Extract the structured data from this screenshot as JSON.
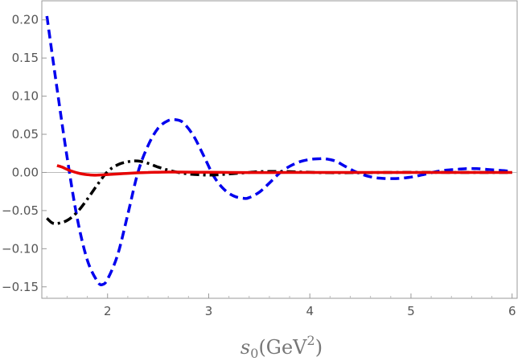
{
  "chart_data": {
    "type": "line",
    "title": "",
    "xlabel": {
      "base": "s",
      "sub": "0",
      "paren_open": "(GeV",
      "sup": "2",
      "paren_close": ")"
    },
    "ylabel": "",
    "xlim": [
      1.35,
      6.05
    ],
    "ylim": [
      -0.165,
      0.225
    ],
    "grid": false,
    "legend": "none",
    "xticks": [
      2,
      3,
      4,
      5,
      6
    ],
    "xtick_labels": [
      "2",
      "3",
      "4",
      "5",
      "6"
    ],
    "yticks": [
      0.2,
      0.15,
      0.1,
      0.05,
      0.0,
      -0.05,
      -0.1,
      -0.15
    ],
    "ytick_labels": [
      "0.20",
      "0.15",
      "0.10",
      "0.05",
      "0.00",
      "−0.05",
      "−0.10",
      "−0.15"
    ],
    "zero_line_color": "#bbbbbb",
    "series": [
      {
        "color": "#0000ee",
        "dash": "dashed",
        "x": [
          1.4,
          1.5,
          1.6,
          1.7,
          1.8,
          1.9,
          1.95,
          2.0,
          2.1,
          2.2,
          2.3,
          2.4,
          2.5,
          2.6,
          2.68,
          2.75,
          2.85,
          2.95,
          3.05,
          3.15,
          3.25,
          3.35,
          3.4,
          3.5,
          3.6,
          3.7,
          3.8,
          3.9,
          4.0,
          4.1,
          4.15,
          4.25,
          4.35,
          4.45,
          4.55,
          4.65,
          4.75,
          4.85,
          4.95,
          5.05,
          5.15,
          5.25,
          5.35,
          5.45,
          5.55,
          5.65,
          5.75,
          5.85,
          5.95,
          6.0
        ],
        "y": [
          0.205,
          0.11,
          0.02,
          -0.06,
          -0.115,
          -0.143,
          -0.147,
          -0.14,
          -0.108,
          -0.055,
          0.0,
          0.035,
          0.058,
          0.068,
          0.069,
          0.065,
          0.048,
          0.022,
          -0.005,
          -0.022,
          -0.031,
          -0.034,
          -0.033,
          -0.026,
          -0.014,
          -0.001,
          0.008,
          0.014,
          0.017,
          0.018,
          0.018,
          0.015,
          0.008,
          0.001,
          -0.004,
          -0.007,
          -0.008,
          -0.008,
          -0.007,
          -0.005,
          -0.002,
          0.001,
          0.003,
          0.004,
          0.005,
          0.005,
          0.004,
          0.003,
          0.002,
          0.001
        ]
      },
      {
        "color": "#000000",
        "dash": "dashdot",
        "x": [
          1.4,
          1.45,
          1.5,
          1.6,
          1.7,
          1.8,
          1.9,
          2.0,
          2.1,
          2.2,
          2.3,
          2.4,
          2.5,
          2.6,
          2.7,
          2.8,
          2.9,
          3.0,
          3.1,
          3.2,
          3.3,
          3.4,
          3.5,
          3.6,
          3.7,
          3.8,
          3.9,
          4.0,
          4.1,
          4.2,
          4.4,
          4.6,
          4.8,
          5.0,
          5.2,
          5.4,
          5.6,
          5.8,
          6.0
        ],
        "y": [
          -0.06,
          -0.066,
          -0.067,
          -0.063,
          -0.052,
          -0.035,
          -0.016,
          0.001,
          0.01,
          0.014,
          0.015,
          0.012,
          0.007,
          0.003,
          0.0,
          -0.002,
          -0.003,
          -0.0035,
          -0.003,
          -0.002,
          -0.001,
          0.0,
          0.001,
          0.0012,
          0.0012,
          0.001,
          0.0006,
          0.0002,
          -0.0002,
          -0.0004,
          -0.0004,
          -0.0002,
          0.0,
          0.0001,
          0.0001,
          0.0,
          0.0,
          0.0,
          0.0
        ]
      },
      {
        "color": "#e60000",
        "dash": "solid",
        "x": [
          1.5,
          1.55,
          1.6,
          1.65,
          1.7,
          1.75,
          1.8,
          1.85,
          1.9,
          1.95,
          2.0,
          2.1,
          2.2,
          2.3,
          2.4,
          2.5,
          2.6,
          2.7,
          2.8,
          2.9,
          3.0,
          3.2,
          3.4,
          3.6,
          3.8,
          4.0,
          4.5,
          5.0,
          5.5,
          6.0
        ],
        "y": [
          0.009,
          0.007,
          0.004,
          0.0015,
          -0.0005,
          -0.002,
          -0.003,
          -0.0035,
          -0.0035,
          -0.0032,
          -0.0028,
          -0.002,
          -0.0012,
          -0.0005,
          0.0,
          0.0003,
          0.0005,
          0.0005,
          0.0004,
          0.0003,
          0.0002,
          0.0,
          -0.0001,
          -0.0001,
          0.0,
          0.0,
          0.0,
          0.0,
          0.0,
          0.0
        ]
      }
    ]
  }
}
